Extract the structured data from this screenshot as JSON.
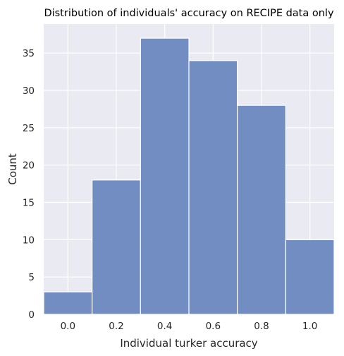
{
  "chart_data": {
    "type": "bar",
    "title": "Distribution of individuals' accuracy on RECIPE data only",
    "xlabel": "Individual turker accuracy",
    "ylabel": "Count",
    "bins": [
      {
        "x0": -0.1,
        "x1": 0.1,
        "value": 3
      },
      {
        "x0": 0.1,
        "x1": 0.3,
        "value": 18
      },
      {
        "x0": 0.3,
        "x1": 0.5,
        "value": 37
      },
      {
        "x0": 0.5,
        "x1": 0.7,
        "value": 34
      },
      {
        "x0": 0.7,
        "x1": 0.9,
        "value": 28
      },
      {
        "x0": 0.9,
        "x1": 1.1,
        "value": 10
      }
    ],
    "xlim": [
      -0.1,
      1.1
    ],
    "ylim": [
      0,
      38.9
    ],
    "xticks": [
      0.0,
      0.2,
      0.4,
      0.6,
      0.8,
      1.0
    ],
    "xtick_labels": [
      "0.0",
      "0.2",
      "0.4",
      "0.6",
      "0.8",
      "1.0"
    ],
    "yticks": [
      0,
      5,
      10,
      15,
      20,
      25,
      30,
      35
    ],
    "ytick_labels": [
      "0",
      "5",
      "10",
      "15",
      "20",
      "25",
      "30",
      "35"
    ],
    "grid": true,
    "colors": {
      "bar_fill": "#6b88be",
      "bar_edge": "#ffffff",
      "plot_background": "#eaeaf2",
      "grid": "#ffffff"
    }
  }
}
